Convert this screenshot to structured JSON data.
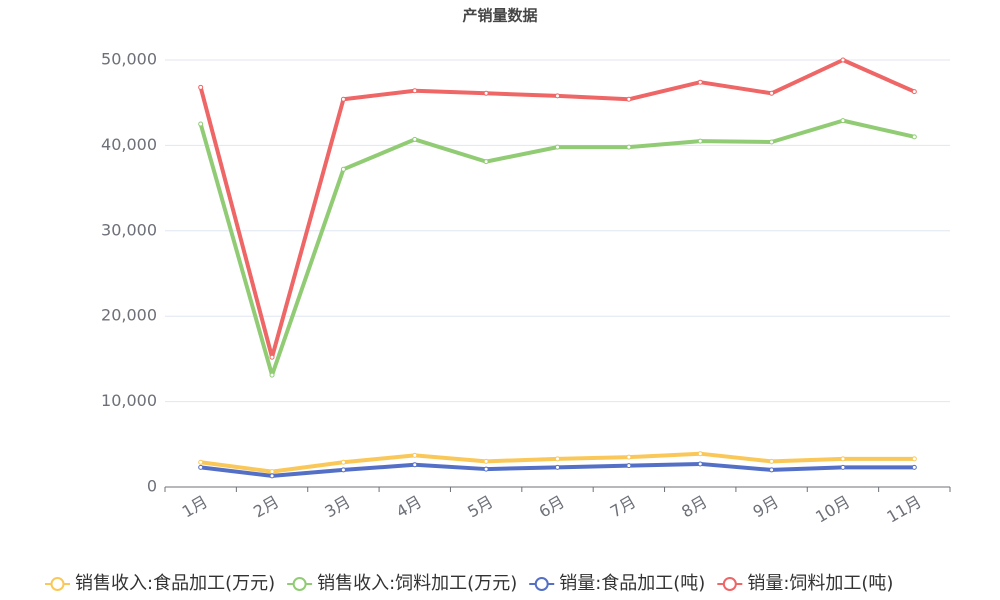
{
  "chart_data": {
    "type": "line",
    "title": "产销量数据",
    "categories": [
      "1月",
      "2月",
      "3月",
      "4月",
      "5月",
      "6月",
      "7月",
      "8月",
      "9月",
      "10月",
      "11月"
    ],
    "series": [
      {
        "name": "销售收入:食品加工(万元)",
        "color": "#fac858",
        "values": [
          2900,
          1800,
          2900,
          3700,
          3000,
          3300,
          3500,
          3900,
          3000,
          3300,
          3300
        ]
      },
      {
        "name": "销售收入:饲料加工(万元)",
        "color": "#91cc75",
        "values": [
          42500,
          13100,
          37200,
          40700,
          38100,
          39800,
          39800,
          40500,
          40400,
          42900,
          41000
        ]
      },
      {
        "name": "销量:食品加工(吨)",
        "color": "#5470c6",
        "values": [
          2300,
          1300,
          2000,
          2600,
          2100,
          2300,
          2500,
          2700,
          2000,
          2300,
          2300
        ]
      },
      {
        "name": "销量:饲料加工(吨)",
        "color": "#ee6666",
        "values": [
          46800,
          15200,
          45400,
          46400,
          46100,
          45800,
          45400,
          47400,
          46100,
          50000,
          46300
        ]
      }
    ],
    "ylim": [
      0,
      50000
    ],
    "yticks": [
      0,
      {
        "value": 10000,
        "label": "10,000"
      },
      {
        "value": 20000,
        "label": "20,000"
      },
      {
        "value": 30000,
        "label": "30,000"
      },
      {
        "value": 40000,
        "label": "40,000"
      },
      {
        "value": 50000,
        "label": "50,000"
      }
    ],
    "grid": true
  }
}
